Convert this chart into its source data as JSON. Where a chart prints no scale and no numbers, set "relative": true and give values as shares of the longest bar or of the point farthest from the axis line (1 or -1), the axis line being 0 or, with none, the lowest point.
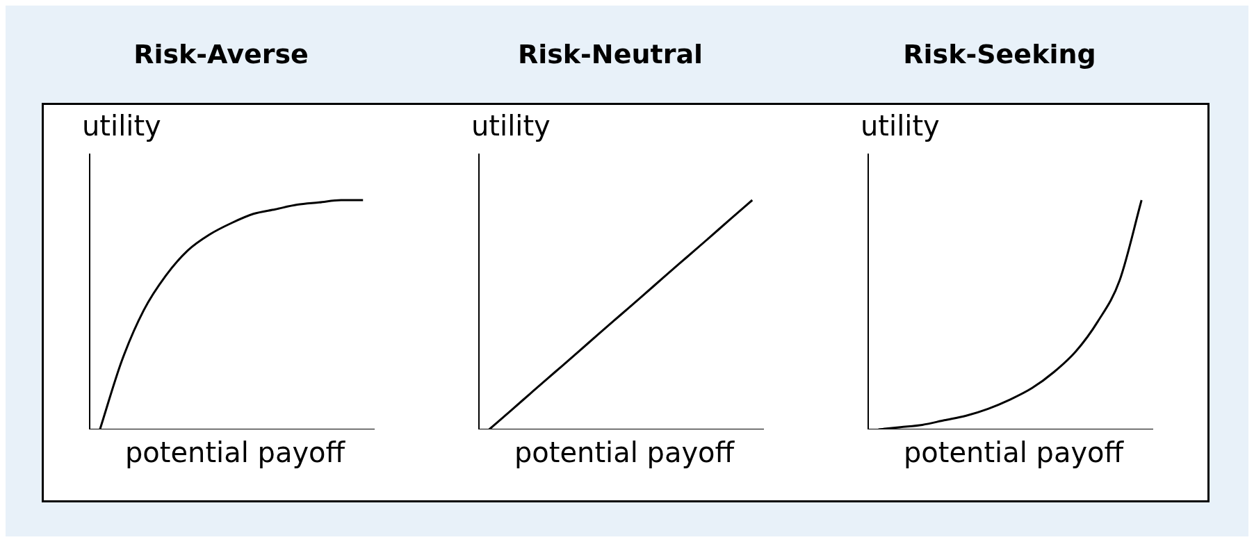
{
  "chart_data": [
    {
      "type": "line",
      "title": "Risk-Averse",
      "xlabel": "potential payoff",
      "ylabel": "utility",
      "relative": true,
      "grid": false,
      "categories": [
        null,
        null,
        null,
        null,
        null,
        null,
        null,
        null,
        null,
        null,
        null,
        null,
        null
      ],
      "series": [
        {
          "color": "#000000",
          "values": [
            0,
            0.3,
            0.52,
            0.67,
            0.78,
            0.85,
            0.9,
            0.94,
            0.96,
            0.98,
            0.99,
            1,
            1
          ]
        }
      ]
    },
    {
      "type": "line",
      "title": "Risk-Neutral",
      "xlabel": "potential payoff",
      "ylabel": "utility",
      "relative": true,
      "grid": false,
      "categories": [
        null,
        null,
        null,
        null,
        null,
        null,
        null,
        null,
        null,
        null,
        null,
        null,
        null
      ],
      "series": [
        {
          "color": "#000000",
          "values": [
            0,
            0.083,
            0.167,
            0.25,
            0.333,
            0.417,
            0.5,
            0.583,
            0.667,
            0.75,
            0.833,
            0.917,
            1
          ]
        }
      ]
    },
    {
      "type": "line",
      "title": "Risk-Seeking",
      "xlabel": "potential payoff",
      "ylabel": "utility",
      "relative": true,
      "grid": false,
      "categories": [
        null,
        null,
        null,
        null,
        null,
        null,
        null,
        null,
        null,
        null,
        null,
        null,
        null
      ],
      "series": [
        {
          "color": "#000000",
          "values": [
            0,
            0.01,
            0.02,
            0.04,
            0.06,
            0.09,
            0.13,
            0.18,
            0.25,
            0.34,
            0.47,
            0.65,
            1
          ]
        }
      ]
    }
  ]
}
